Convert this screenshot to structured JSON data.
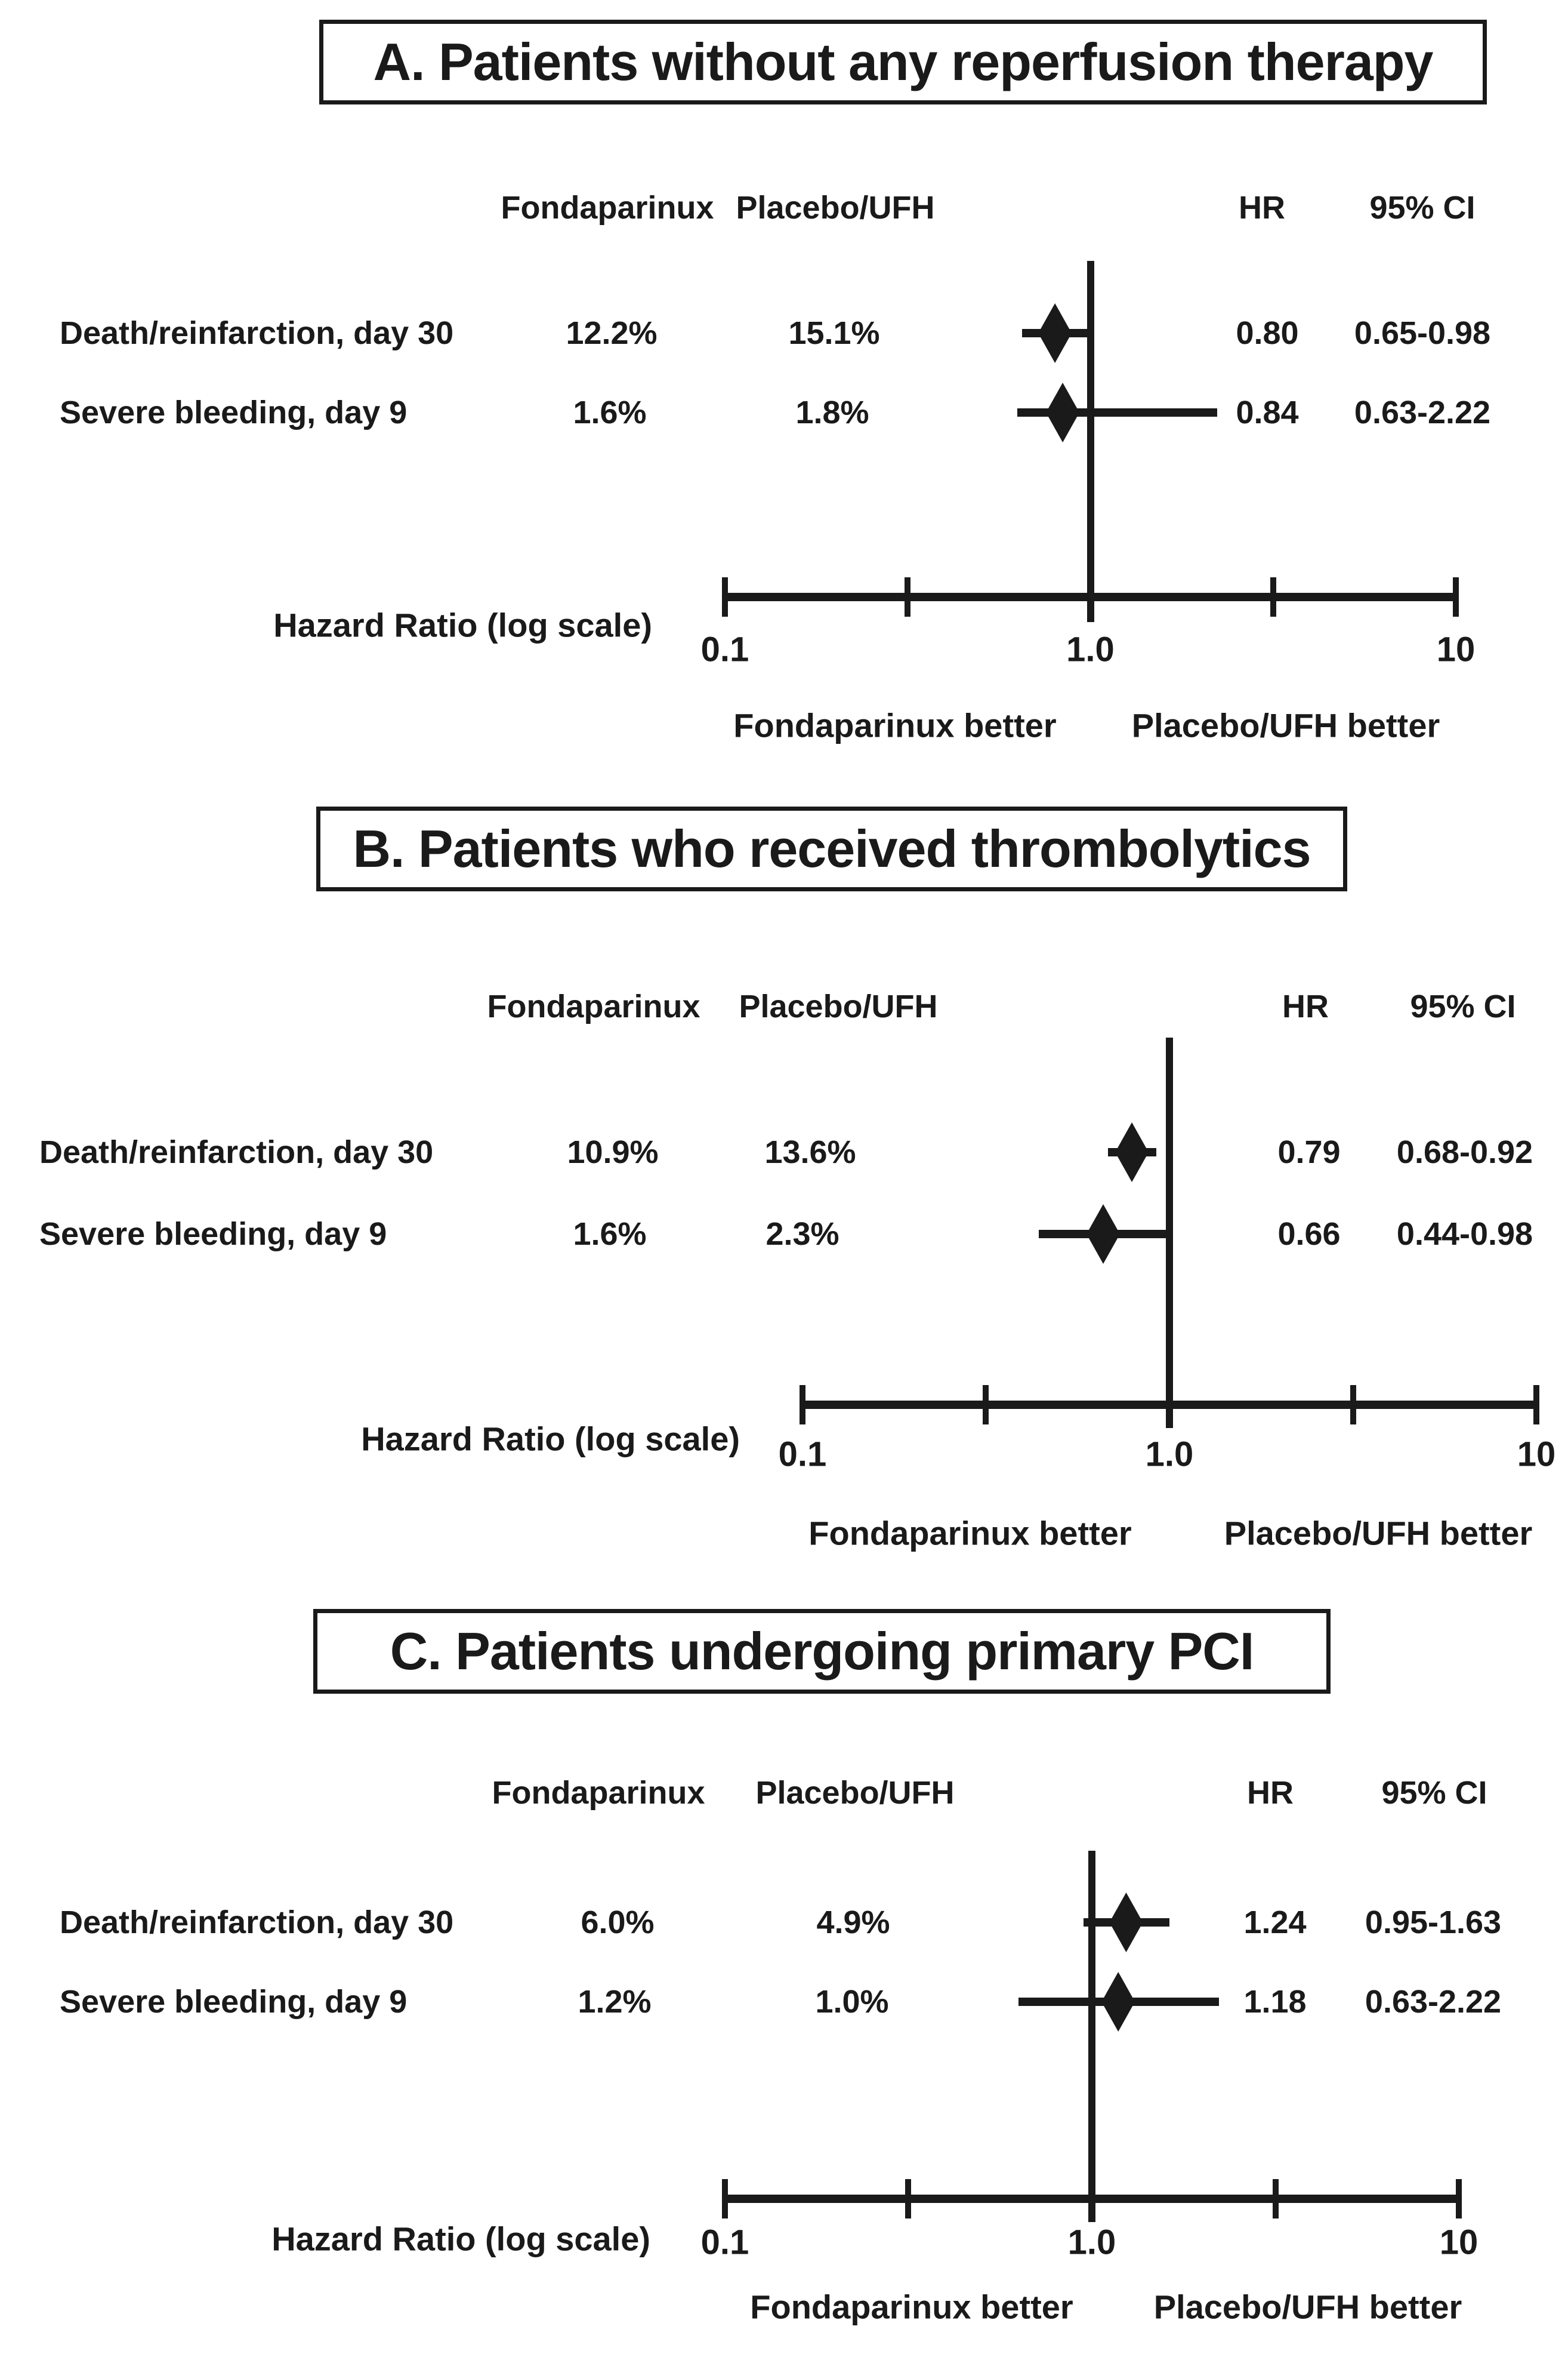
{
  "figure": {
    "background_color": "#ffffff",
    "ink_color": "#1a1a1a"
  },
  "chart_data": [
    {
      "type": "forest",
      "panel_label": "A",
      "title": "A. Patients without any reperfusion therapy",
      "column_headers": {
        "group1": "Fondaparinux",
        "group2": "Placebo/UFH",
        "hr": "HR",
        "ci": "95% CI"
      },
      "xlabel": "Hazard Ratio (log scale)",
      "xscale": "log",
      "xlim": [
        0.1,
        10
      ],
      "xticks": [
        0.1,
        1.0,
        10
      ],
      "xtick_labels": [
        "0.1",
        "1.0",
        "10"
      ],
      "minor_xticks": [
        0.3162,
        3.1623
      ],
      "reference_line_x": 1.0,
      "direction_label_left": "Fondaparinux better",
      "direction_label_right": "Placebo/UFH better",
      "rows": [
        {
          "label": "Death/reinfarction, day 30",
          "group1_pct": "12.2%",
          "group2_pct": "15.1%",
          "hr": 0.8,
          "ci_low": 0.65,
          "ci_high": 0.98,
          "hr_label": "0.80",
          "ci_label": "0.65-0.98"
        },
        {
          "label": "Severe bleeding, day 9",
          "group1_pct": "1.6%",
          "group2_pct": "1.8%",
          "hr": 0.84,
          "ci_low": 0.63,
          "ci_high": 2.22,
          "hr_label": "0.84",
          "ci_label": "0.63-2.22"
        }
      ]
    },
    {
      "type": "forest",
      "panel_label": "B",
      "title": "B. Patients who received thrombolytics",
      "column_headers": {
        "group1": "Fondaparinux",
        "group2": "Placebo/UFH",
        "hr": "HR",
        "ci": "95% CI"
      },
      "xlabel": "Hazard Ratio (log scale)",
      "xscale": "log",
      "xlim": [
        0.1,
        10
      ],
      "xticks": [
        0.1,
        1.0,
        10
      ],
      "xtick_labels": [
        "0.1",
        "1.0",
        "10"
      ],
      "minor_xticks": [
        0.3162,
        3.1623
      ],
      "reference_line_x": 1.0,
      "direction_label_left": "Fondaparinux better",
      "direction_label_right": "Placebo/UFH better",
      "rows": [
        {
          "label": "Death/reinfarction, day 30",
          "group1_pct": "10.9%",
          "group2_pct": "13.6%",
          "hr": 0.79,
          "ci_low": 0.68,
          "ci_high": 0.92,
          "hr_label": "0.79",
          "ci_label": "0.68-0.92"
        },
        {
          "label": "Severe bleeding, day 9",
          "group1_pct": "1.6%",
          "group2_pct": "2.3%",
          "hr": 0.66,
          "ci_low": 0.44,
          "ci_high": 0.98,
          "hr_label": "0.66",
          "ci_label": "0.44-0.98"
        }
      ]
    },
    {
      "type": "forest",
      "panel_label": "C",
      "title": "C. Patients undergoing primary PCI",
      "column_headers": {
        "group1": "Fondaparinux",
        "group2": "Placebo/UFH",
        "hr": "HR",
        "ci": "95% CI"
      },
      "xlabel": "Hazard Ratio (log scale)",
      "xscale": "log",
      "xlim": [
        0.1,
        10
      ],
      "xticks": [
        0.1,
        1.0,
        10
      ],
      "xtick_labels": [
        "0.1",
        "1.0",
        "10"
      ],
      "minor_xticks": [
        0.3162,
        3.1623
      ],
      "reference_line_x": 1.0,
      "direction_label_left": "Fondaparinux better",
      "direction_label_right": "Placebo/UFH better",
      "rows": [
        {
          "label": "Death/reinfarction, day 30",
          "group1_pct": "6.0%",
          "group2_pct": "4.9%",
          "hr": 1.24,
          "ci_low": 0.95,
          "ci_high": 1.63,
          "hr_label": "1.24",
          "ci_label": "0.95-1.63"
        },
        {
          "label": "Severe bleeding, day 9",
          "group1_pct": "1.2%",
          "group2_pct": "1.0%",
          "hr": 1.18,
          "ci_low": 0.63,
          "ci_high": 2.22,
          "hr_label": "1.18",
          "ci_label": "0.63-2.22"
        }
      ]
    }
  ]
}
